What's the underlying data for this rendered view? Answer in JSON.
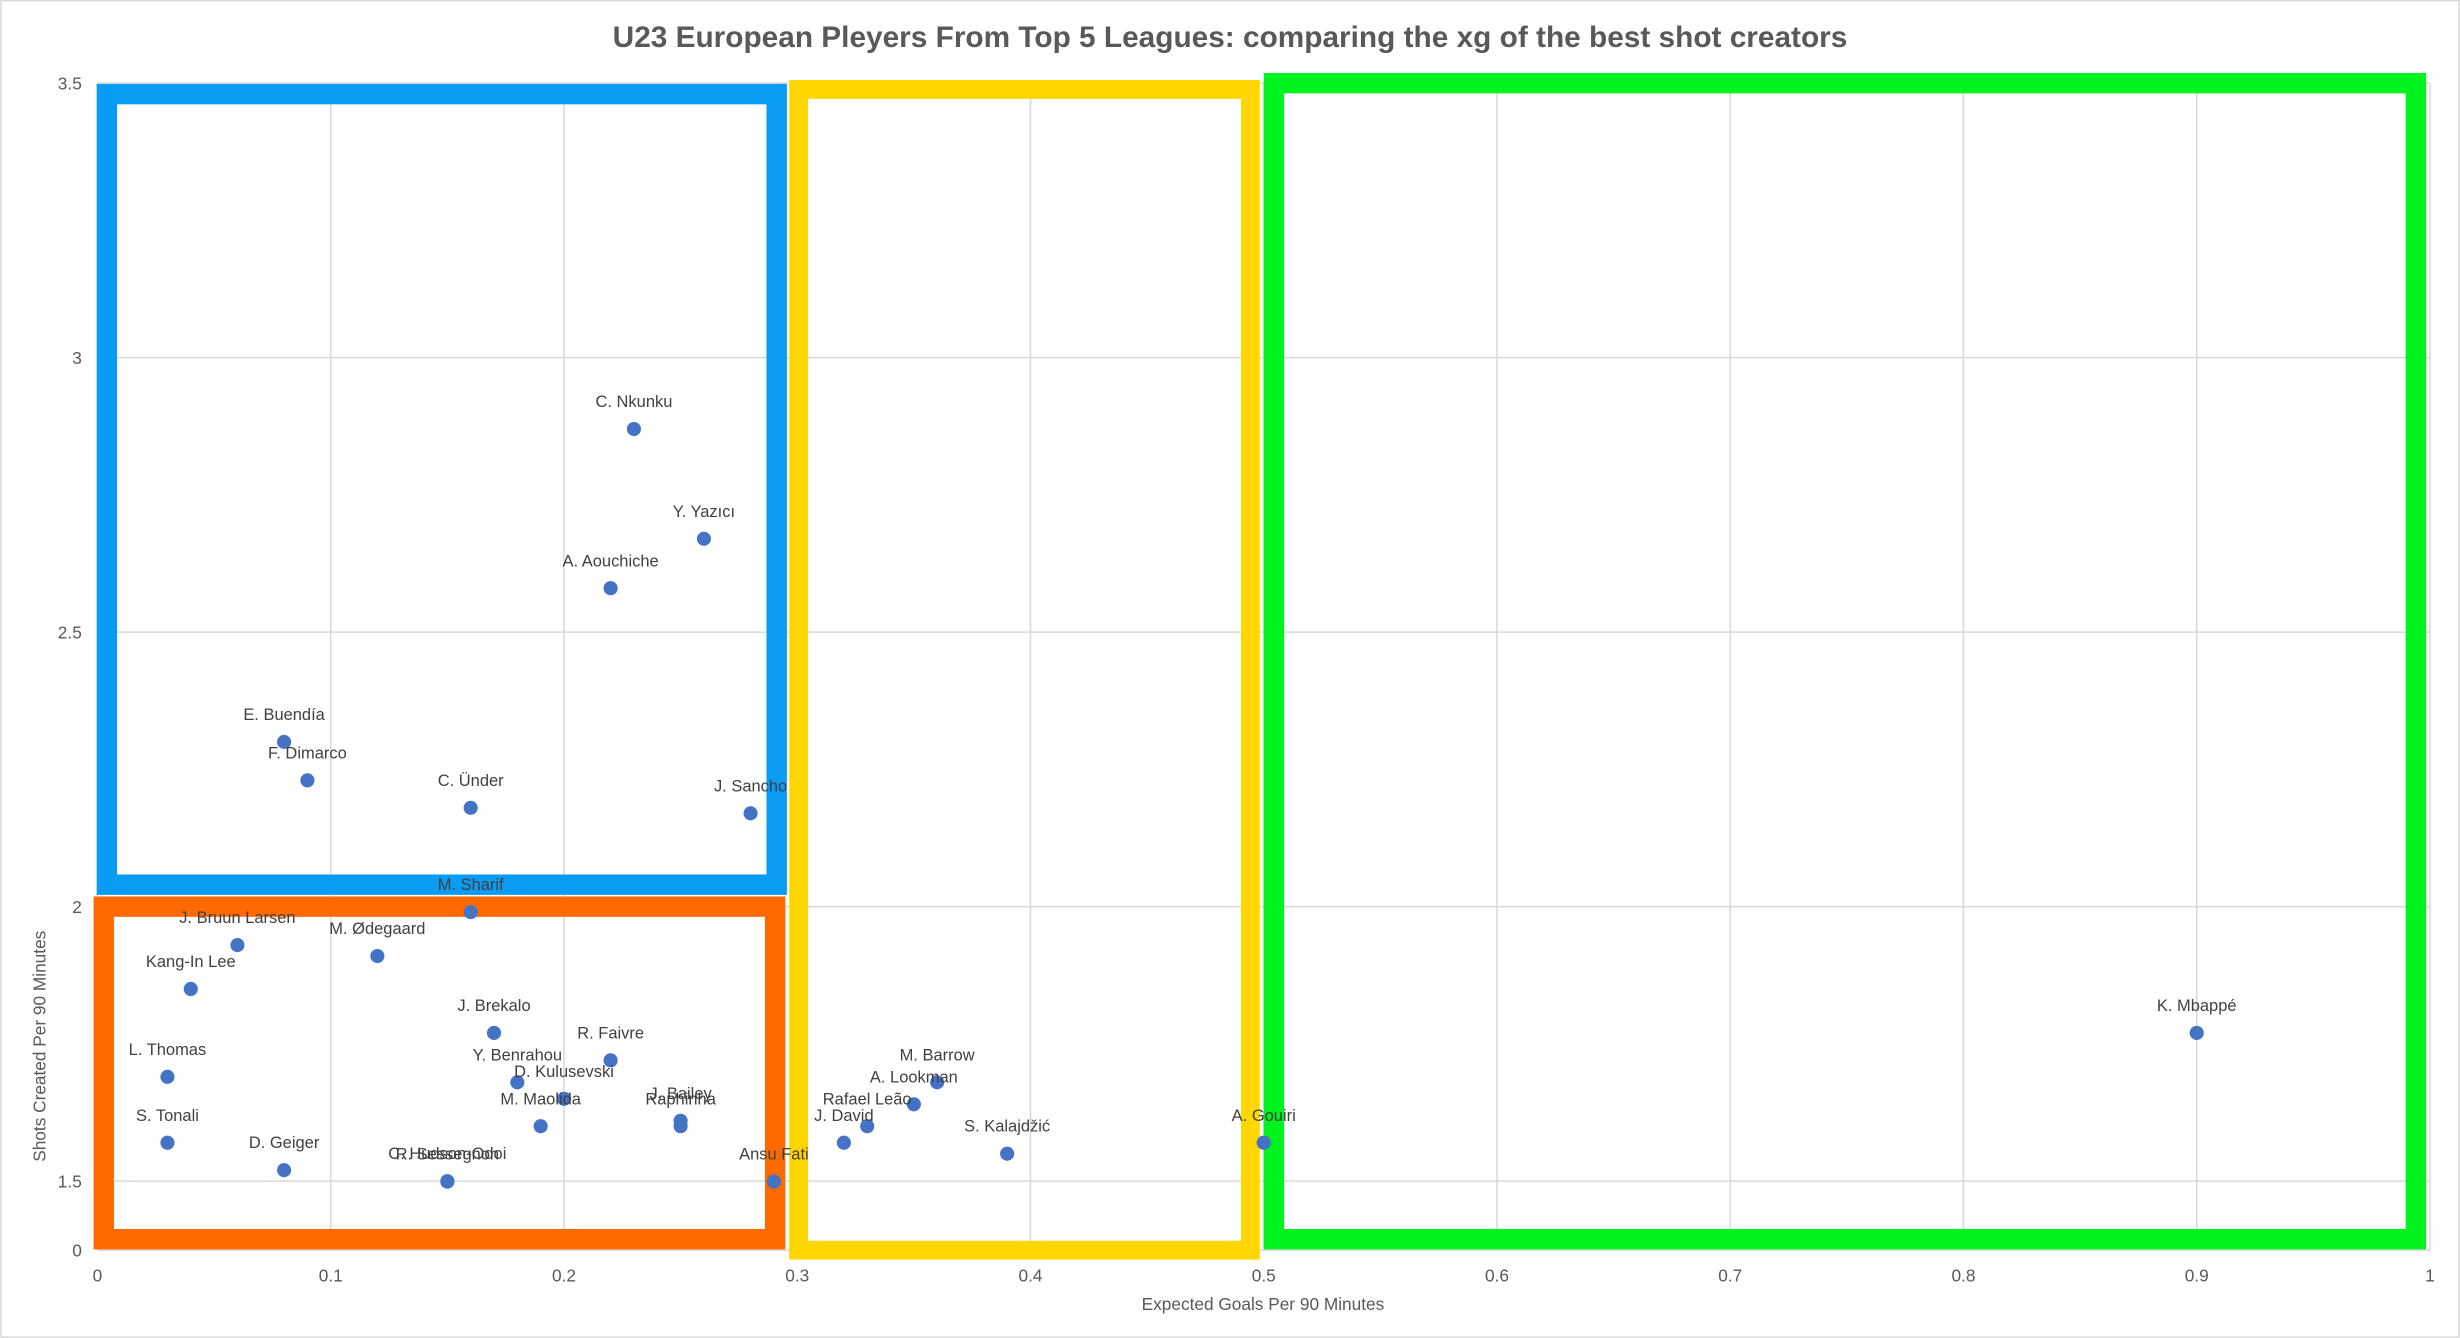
{
  "chart_data": {
    "type": "scatter",
    "title": "U23 European Pleyers From Top 5 Leagues: comparing the xg of the best shot creators",
    "xlabel": "Expected Goals Per 90 Minutes",
    "ylabel": "Shots Created Per 90 Minutes",
    "xlim": [
      0,
      1
    ],
    "xticks": [
      0,
      0.1,
      0.2,
      0.3,
      0.4,
      0.5,
      0.6,
      0.7,
      0.8,
      0.9,
      1
    ],
    "ylim": [
      0,
      3.5
    ],
    "yticks": [
      0,
      1.5,
      2,
      2.5,
      3,
      3.5
    ],
    "y_axis_break": [
      0,
      1.5
    ],
    "grid": true,
    "color": "#4472c4",
    "point_labels": [
      "C. Nkunku",
      "Y. Yazıcı",
      "A. Aouchiche",
      "E. Buendía",
      "F. Dimarco",
      "C. Ünder",
      "J. Sancho",
      "M. Sharif",
      "J. Bruun Larsen",
      "M. Ødegaard",
      "Kang-In Lee",
      "J. Brekalo",
      "R. Faivre",
      "L. Thomas",
      "Y. Benrahou",
      "D. Kulusevski",
      "J. Bailey",
      "Raphinha",
      "M. Maolida",
      "S. Tonali",
      "D. Geiger",
      "C. Hudson-Odoi",
      "R. Sessegnon",
      "Ansu Fati",
      "M. Barrow",
      "A. Lookman",
      "Rafael Leão",
      "J. David",
      "S. Kalajdžić",
      "A. Gouiri",
      "K. Mbappé"
    ],
    "x": [
      0.23,
      0.26,
      0.22,
      0.08,
      0.09,
      0.16,
      0.28,
      0.16,
      0.06,
      0.12,
      0.04,
      0.17,
      0.22,
      0.03,
      0.18,
      0.2,
      0.25,
      0.25,
      0.19,
      0.03,
      0.08,
      0.15,
      0.15,
      0.29,
      0.36,
      0.35,
      0.33,
      0.32,
      0.39,
      0.5,
      0.9
    ],
    "values": [
      2.87,
      2.67,
      2.58,
      2.3,
      2.23,
      2.18,
      2.17,
      1.99,
      1.93,
      1.91,
      1.85,
      1.77,
      1.72,
      1.69,
      1.68,
      1.65,
      1.61,
      1.6,
      1.6,
      1.57,
      1.52,
      1.5,
      1.49,
      1.49,
      1.68,
      1.64,
      1.6,
      1.57,
      1.55,
      1.57,
      1.77
    ]
  }
}
